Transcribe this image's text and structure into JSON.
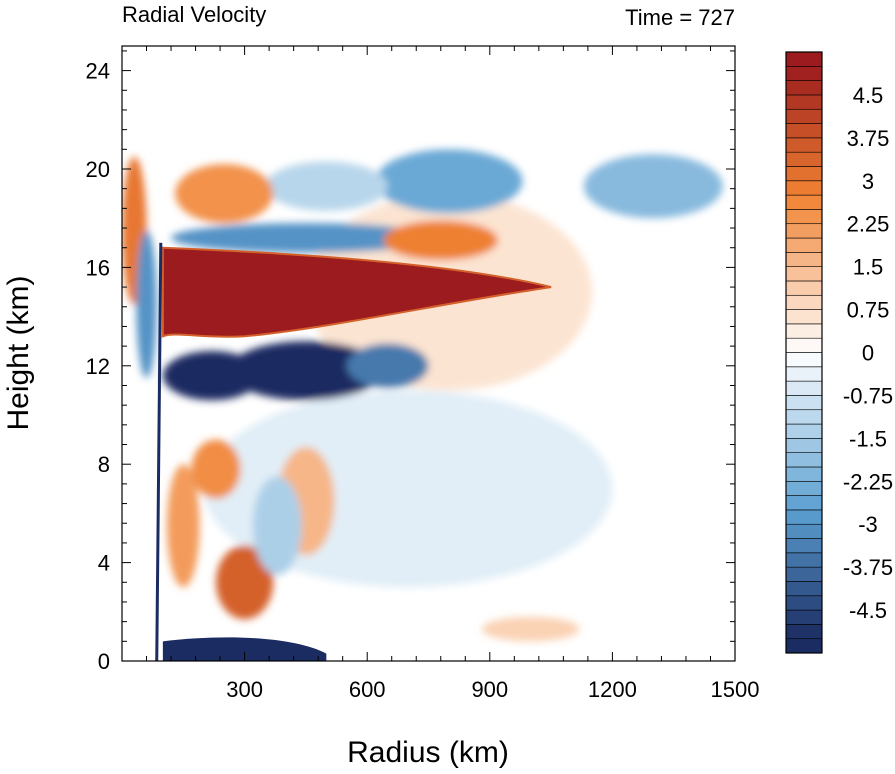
{
  "chart_data": {
    "type": "heatmap",
    "title": "Radial Velocity",
    "subtitle": "Time = 727",
    "xlabel": "Radius (km)",
    "ylabel": "Height (km)",
    "xlim": [
      0,
      1500
    ],
    "ylim": [
      0,
      25
    ],
    "x_ticks": [
      300,
      600,
      900,
      1200,
      1500
    ],
    "x_tick_labels": [
      "300",
      "600",
      "900",
      "1200",
      "1500"
    ],
    "y_ticks": [
      0,
      4,
      8,
      12,
      16,
      20,
      24
    ],
    "y_tick_labels": [
      "0",
      "4",
      "8",
      "12",
      "16",
      "20",
      "24"
    ],
    "grid": false,
    "colorbar": {
      "levels": [
        -5.25,
        -5,
        -4.75,
        -4.5,
        -4.25,
        -4,
        -3.75,
        -3.5,
        -3.25,
        -3,
        -2.75,
        -2.5,
        -2.25,
        -2,
        -1.75,
        -1.5,
        -1.25,
        -1,
        -0.75,
        -0.5,
        -0.25,
        0,
        0.25,
        0.5,
        0.75,
        1,
        1.25,
        1.5,
        1.75,
        2,
        2.25,
        2.5,
        2.75,
        3,
        3.25,
        3.5,
        3.75,
        4,
        4.25,
        4.5,
        4.75,
        5,
        5.25
      ],
      "labels": [
        "-4.5",
        "-3.75",
        "-3",
        "-2.25",
        "-1.5",
        "-0.75",
        "0",
        "0.75",
        "1.5",
        "2.25",
        "3",
        "3.75",
        "4.5"
      ],
      "label_values": [
        -4.5,
        -3.75,
        -3,
        -2.25,
        -1.5,
        -0.75,
        0,
        0.75,
        1.5,
        2.25,
        3,
        3.75,
        4.5
      ],
      "color_low": "#1b2c62",
      "color_mid": "#ffffff",
      "color_high": "#9b1b1e"
    },
    "features": [
      {
        "name": "upper outflow jet",
        "x_range": [
          100,
          1050
        ],
        "y_range": [
          13,
          17
        ],
        "value": 5
      },
      {
        "name": "inflow band below outflow",
        "x_range": [
          100,
          600
        ],
        "y_range": [
          10.5,
          13
        ],
        "value": -5
      },
      {
        "name": "upper inflow band",
        "x_range": [
          150,
          800
        ],
        "y_range": [
          16.5,
          18
        ],
        "value": -3
      },
      {
        "name": "surface inflow layer",
        "x_range": [
          100,
          500
        ],
        "y_range": [
          0,
          1
        ],
        "value": -5
      },
      {
        "name": "high-altitude inflow cloud",
        "x_range": [
          650,
          1450
        ],
        "y_range": [
          18,
          21
        ],
        "value": -2
      },
      {
        "name": "lower outflow patches",
        "x_range": [
          150,
          600
        ],
        "y_range": [
          1.5,
          9
        ],
        "value": 2.5
      }
    ]
  }
}
